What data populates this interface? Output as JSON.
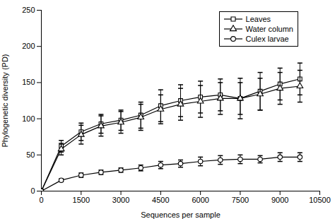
{
  "chart_data": {
    "type": "line",
    "xlabel": "Sequences per sample",
    "ylabel": "Phylogenetic diversity (PD)",
    "x": [
      0,
      750,
      1500,
      2250,
      3000,
      3750,
      4500,
      5250,
      6000,
      6750,
      7500,
      8250,
      9000,
      9750
    ],
    "series": [
      {
        "name": "Leaves",
        "color": "#000000",
        "marker": "square",
        "values": [
          0,
          62,
          82,
          93,
          98,
          105,
          118,
          125,
          130,
          133,
          128,
          138,
          148,
          155
        ],
        "yerr": [
          0,
          8,
          12,
          13,
          14,
          18,
          22,
          22,
          22,
          22,
          28,
          26,
          22,
          22
        ]
      },
      {
        "name": "Water column",
        "color": "#000000",
        "marker": "triangle",
        "values": [
          0,
          58,
          78,
          90,
          95,
          102,
          113,
          120,
          124,
          128,
          128,
          134,
          142,
          145
        ],
        "yerr": [
          0,
          8,
          13,
          14,
          15,
          18,
          20,
          22,
          22,
          22,
          22,
          22,
          22,
          22
        ]
      },
      {
        "name": "Culex larvae",
        "color": "#000000",
        "marker": "circle",
        "values": [
          0,
          15,
          22,
          26,
          29,
          32,
          36,
          38,
          41,
          43,
          44,
          44,
          47,
          47
        ],
        "yerr": [
          0,
          2,
          3,
          3,
          3,
          4,
          5,
          5,
          6,
          6,
          6,
          5,
          6,
          6
        ]
      }
    ],
    "xlim": [
      0,
      10500
    ],
    "ylim": [
      0,
      250
    ],
    "xticks": [
      0,
      1500,
      3000,
      4500,
      6000,
      7500,
      9000,
      10500
    ],
    "yticks": [
      0,
      50,
      100,
      150,
      200,
      250
    ],
    "legend": "upper right",
    "grid": false
  }
}
